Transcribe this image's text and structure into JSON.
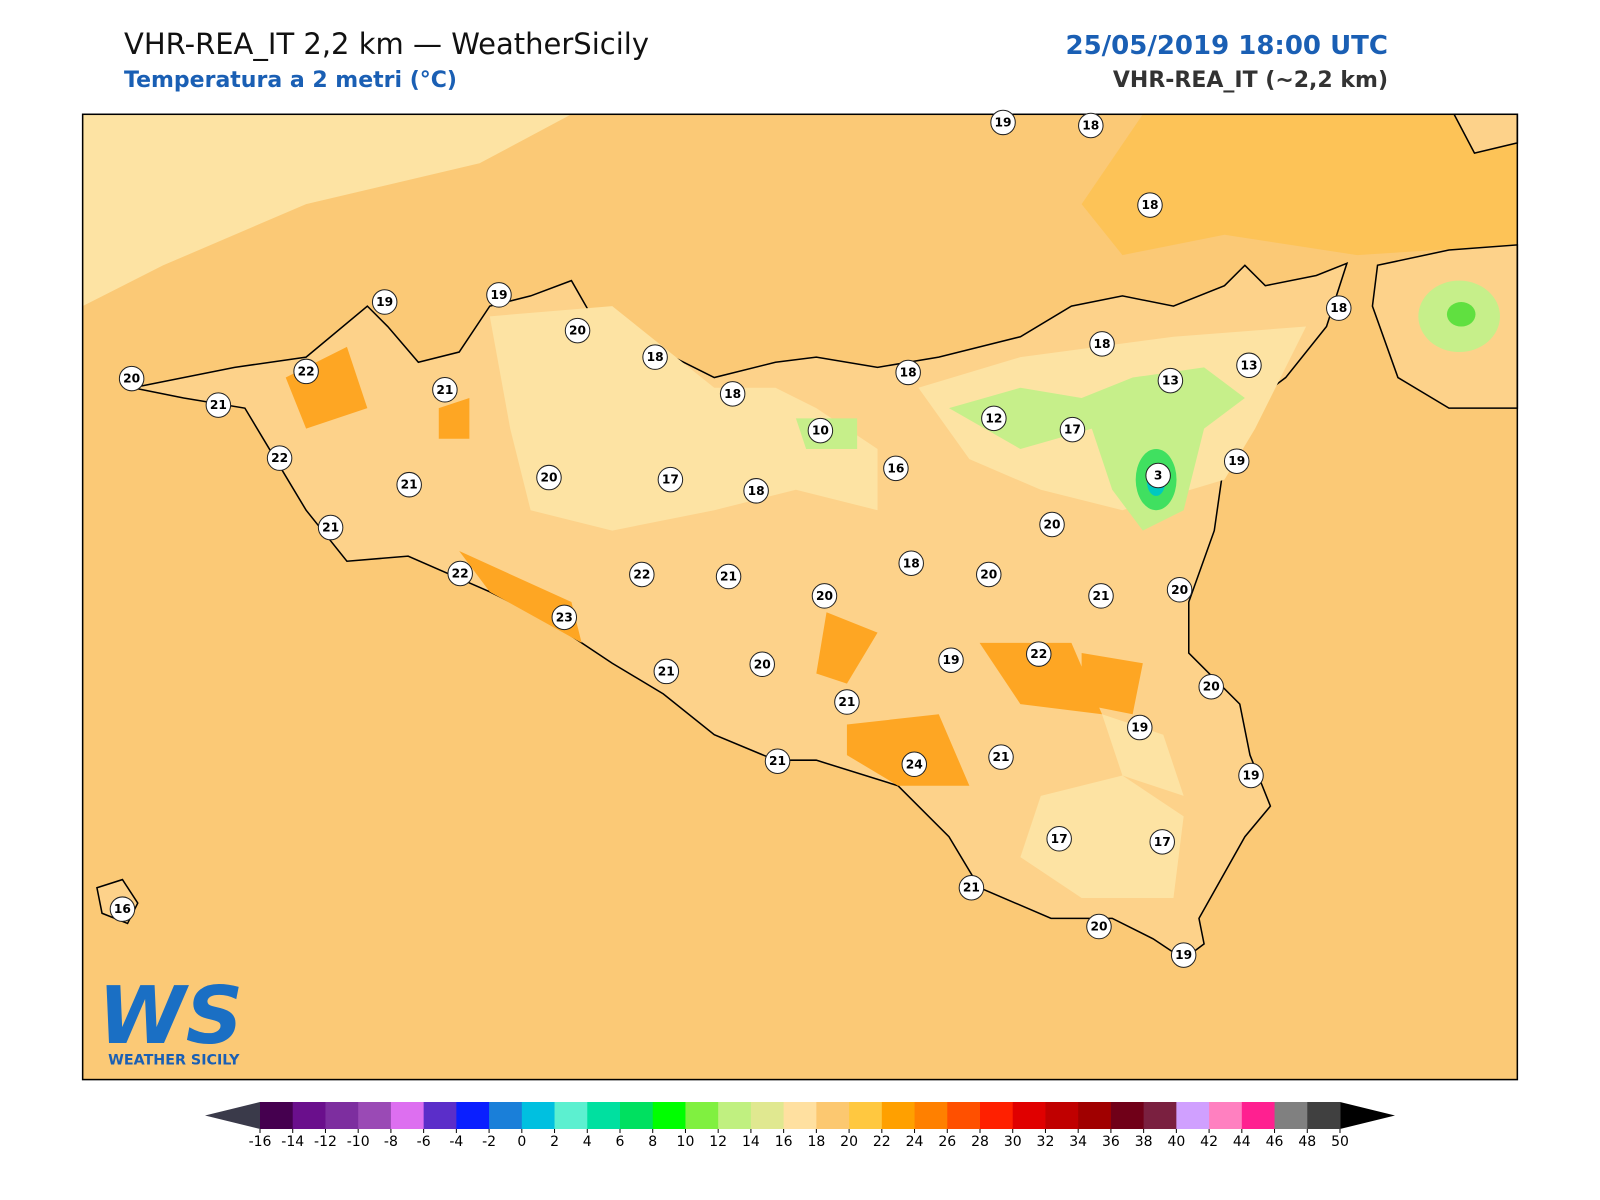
{
  "header": {
    "title": "VHR-REA_IT 2,2 km — WeatherSicily",
    "subtitle": "Temperatura a 2 metri (°C)",
    "date": "25/05/2019 18:00 UTC",
    "model": "VHR-REA_IT (~2,2 km)"
  },
  "stations": [
    19,
    18,
    18,
    19,
    19,
    20,
    18,
    22,
    21,
    20,
    21,
    18,
    18,
    18,
    13,
    13,
    18,
    10,
    12,
    17,
    16,
    19,
    3,
    22,
    21,
    20,
    17,
    18,
    20,
    21,
    22,
    22,
    21,
    20,
    18,
    20,
    21,
    20,
    23,
    21,
    20,
    19,
    22,
    21,
    20,
    19,
    24,
    21,
    21,
    19,
    17,
    17,
    21,
    20,
    19,
    16
  ],
  "colorbar": {
    "ticks": [
      -16,
      -14,
      -12,
      -10,
      -8,
      -6,
      -4,
      -2,
      0,
      2,
      4,
      6,
      8,
      10,
      12,
      14,
      16,
      18,
      20,
      22,
      24,
      26,
      28,
      30,
      32,
      34,
      36,
      38,
      40,
      42,
      44,
      46,
      48,
      50
    ],
    "colors": [
      "#45004f",
      "#6a0f8c",
      "#7d2e9f",
      "#9a4ab5",
      "#dd6ff0",
      "#5b2ec9",
      "#0a1fff",
      "#1a7fd9",
      "#00c0e0",
      "#5cf0d0",
      "#00e0a0",
      "#00e060",
      "#00ff00",
      "#80f040",
      "#c0f080",
      "#e0e890",
      "#ffe0a0",
      "#fcc870",
      "#ffc840",
      "#ffa000",
      "#ff8000",
      "#ff5000",
      "#ff2000",
      "#e00000",
      "#c00000",
      "#a00000",
      "#700018",
      "#7a2040",
      "#d0a0ff",
      "#ff80c0",
      "#ff2090",
      "#808080",
      "#404040"
    ],
    "under_color": "#3a3a4a",
    "over_color": "#000000"
  },
  "logo": {
    "mark": "WS",
    "text": "WEATHER SICILY"
  }
}
